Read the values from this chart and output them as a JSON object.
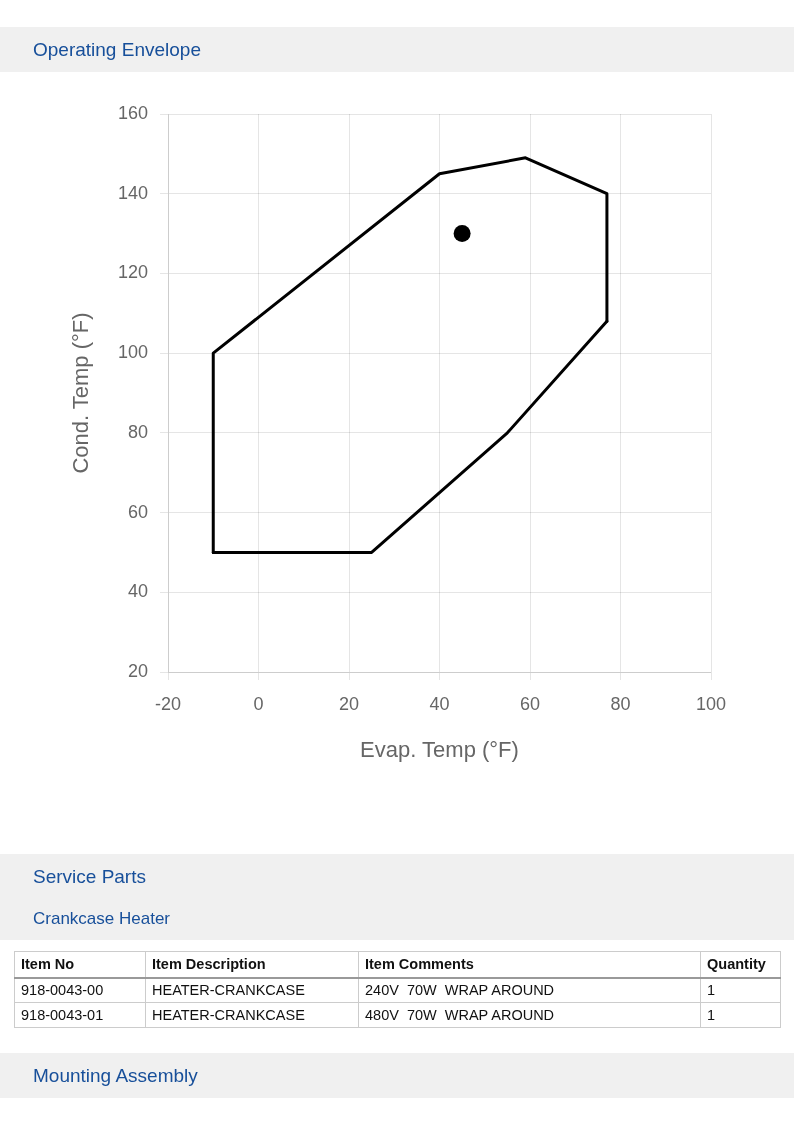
{
  "chart_data": [
    {
      "type": "line",
      "title": "Operating Envelope",
      "xlabel": "Evap. Temp (°F)",
      "ylabel": "Cond. Temp (°F)",
      "series": [
        {
          "type": "line",
          "color": "#000000",
          "marker": "none",
          "x": [
            -10,
            -10,
            40,
            59,
            77,
            77
          ],
          "values": [
            50,
            100,
            145,
            149,
            140,
            108
          ]
        },
        {
          "type": "line",
          "color": "#000000",
          "marker": "none",
          "x": [
            -10,
            25,
            55,
            77
          ],
          "values": [
            50,
            50,
            80,
            108
          ]
        },
        {
          "type": "scatter",
          "color": "#000000",
          "marker": "circle",
          "x": [
            45
          ],
          "values": [
            130
          ]
        }
      ],
      "xlim": [
        -20,
        100
      ],
      "xticks": [
        -20,
        0,
        20,
        40,
        60,
        80,
        100
      ],
      "ylim": [
        20,
        160
      ],
      "yticks": [
        20,
        40,
        60,
        80,
        100,
        120,
        140,
        160
      ],
      "grid": true,
      "legend": false
    },
    {
      "type": "other",
      "title": "Service Parts",
      "subtitle": "Crankcase Heater",
      "annotations": [
        "Item No",
        "Item Description",
        "Item Comments",
        "Quantity",
        "918-0043-00",
        "HEATER-CRANKCASE",
        "240V  70W  WRAP AROUND",
        "1",
        "918-0043-01",
        "HEATER-CRANKCASE",
        "480V  70W  WRAP AROUND",
        "1"
      ]
    },
    {
      "type": "other",
      "title": "Mounting Assembly"
    }
  ]
}
